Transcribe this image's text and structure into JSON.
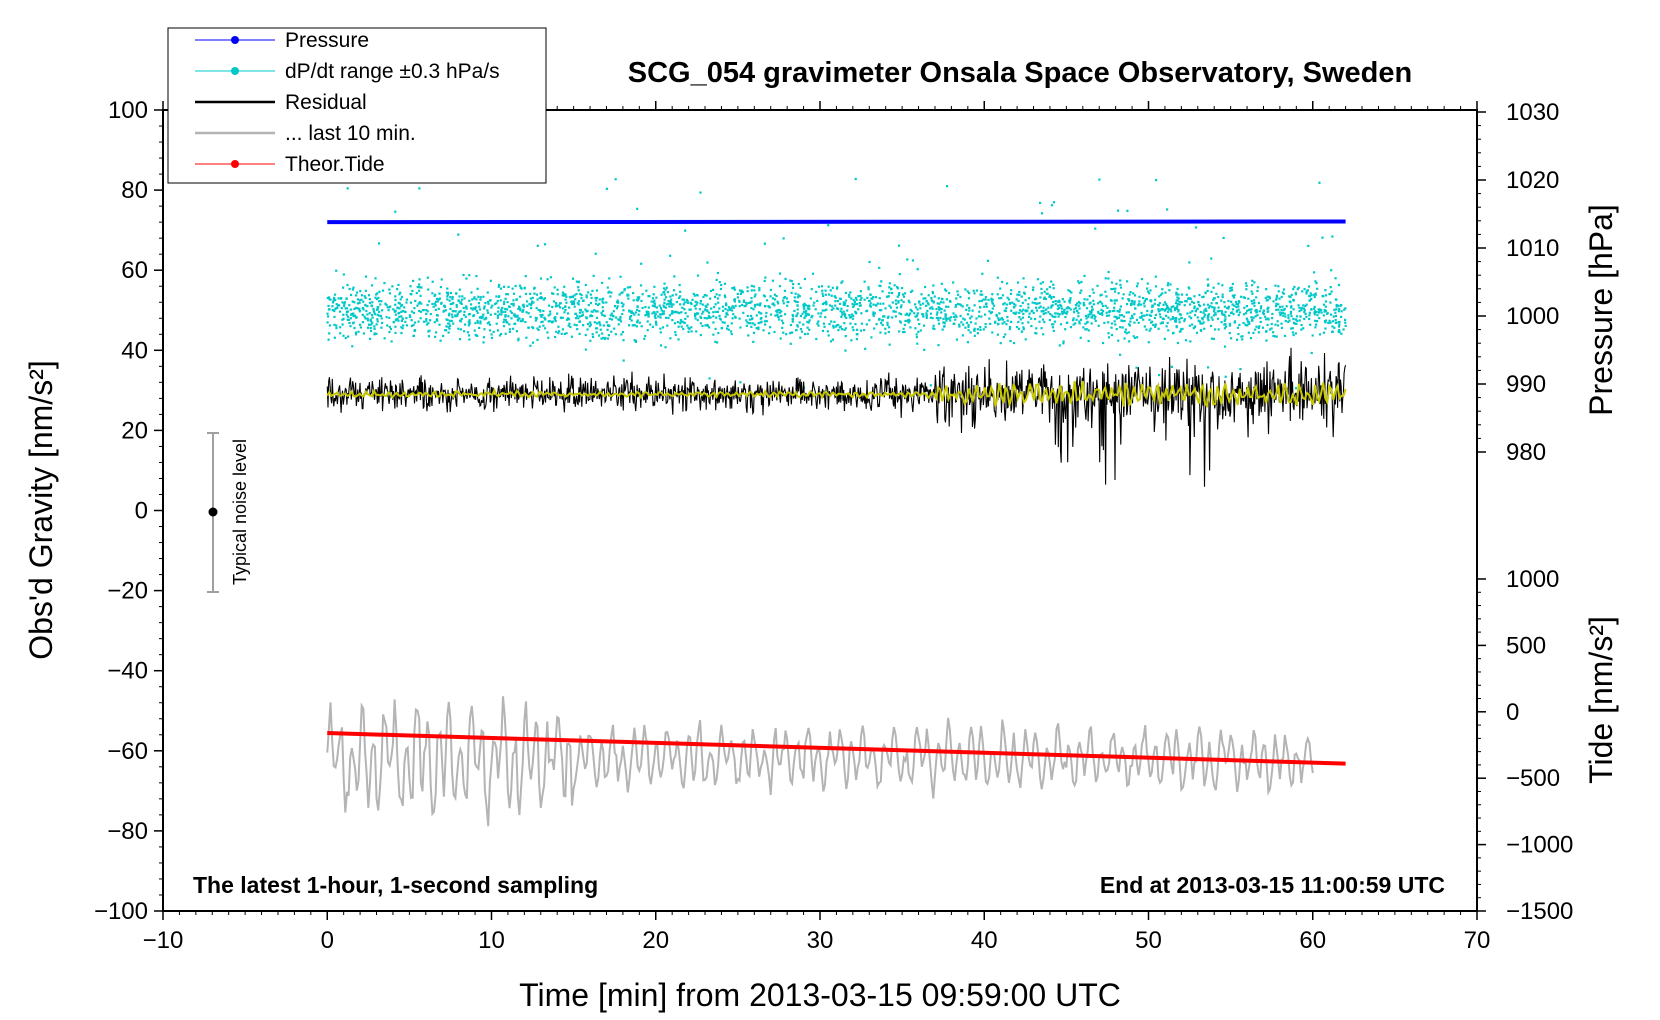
{
  "chart_data": {
    "type": "line",
    "title": "SCG_054 gravimeter Onsala Space Observatory, Sweden",
    "xlabel": "Time [min] from 2013-03-15 09:59:00 UTC",
    "ylabel": "Obs'd Gravity [nm/s²]",
    "xlim": [
      -10,
      70
    ],
    "ylim": [
      -100,
      100
    ],
    "x_ticks": [
      "−10",
      "0",
      "10",
      "20",
      "30",
      "40",
      "50",
      "60",
      "70"
    ],
    "y_ticks": [
      "100",
      "80",
      "60",
      "40",
      "20",
      "0",
      "−20",
      "−40",
      "−60",
      "−80",
      "−100"
    ],
    "right_axes": {
      "pressure": {
        "label": "Pressure [hPa]",
        "range": [
          980,
          1030
        ],
        "ticks": [
          "1030",
          "1020",
          "1010",
          "1000",
          "990",
          "980"
        ]
      },
      "tide": {
        "label": "Tide [nm/s²]",
        "range": [
          -1500,
          1000
        ],
        "ticks": [
          "1000",
          "500",
          "0",
          "−500",
          "−1000",
          "−1500"
        ]
      }
    },
    "legend": [
      {
        "label": "Pressure",
        "color": "#0000ff",
        "style": "line-dot"
      },
      {
        "label": "dP/dt range ±0.3 hPa/s",
        "color": "#00c8c8",
        "style": "line-dot"
      },
      {
        "label": "Residual",
        "color": "#000000",
        "style": "line"
      },
      {
        "label": "... last 10 min.",
        "color": "#b4b4b4",
        "style": "line"
      },
      {
        "label": "Theor.Tide",
        "color": "#ff0000",
        "style": "line-dot"
      }
    ],
    "series": [
      {
        "name": "Pressure",
        "axis": "pressure",
        "x": [
          0,
          62
        ],
        "values": [
          1013.8,
          1013.9
        ]
      },
      {
        "name": "dP/dt range ±0.3 hPa/s",
        "axis": "gravity",
        "x_range": [
          0,
          62
        ],
        "center": 50,
        "spread": 5
      },
      {
        "name": "Residual",
        "axis": "gravity",
        "x_range": [
          0,
          62
        ],
        "center": 29,
        "spread_early": 3,
        "spread_late": 6
      },
      {
        "name": "Residual smoothed",
        "axis": "gravity",
        "color": "#c8c800",
        "x_range": [
          0,
          62
        ],
        "center": 29
      },
      {
        "name": "... last 10 min.",
        "axis": "gravity",
        "x_range": [
          0,
          60
        ],
        "center": -62,
        "spread": 8
      },
      {
        "name": "Theor.Tide",
        "axis": "tide",
        "x": [
          0,
          62
        ],
        "values": [
          -160,
          -390
        ]
      }
    ],
    "noise_bar": {
      "label": "Typical noise level",
      "x": -7,
      "center": 0,
      "range": [
        -20,
        20
      ]
    },
    "annotations": {
      "bottom_left": "The latest 1-hour, 1-second sampling",
      "bottom_right": "End at 2013-03-15 11:00:59 UTC"
    },
    "colors": {
      "pressure": "#0000ff",
      "dpdt": "#00c8c8",
      "residual": "#000000",
      "smoothed": "#c8c800",
      "last10": "#b4b4b4",
      "tide": "#ff0000"
    }
  }
}
